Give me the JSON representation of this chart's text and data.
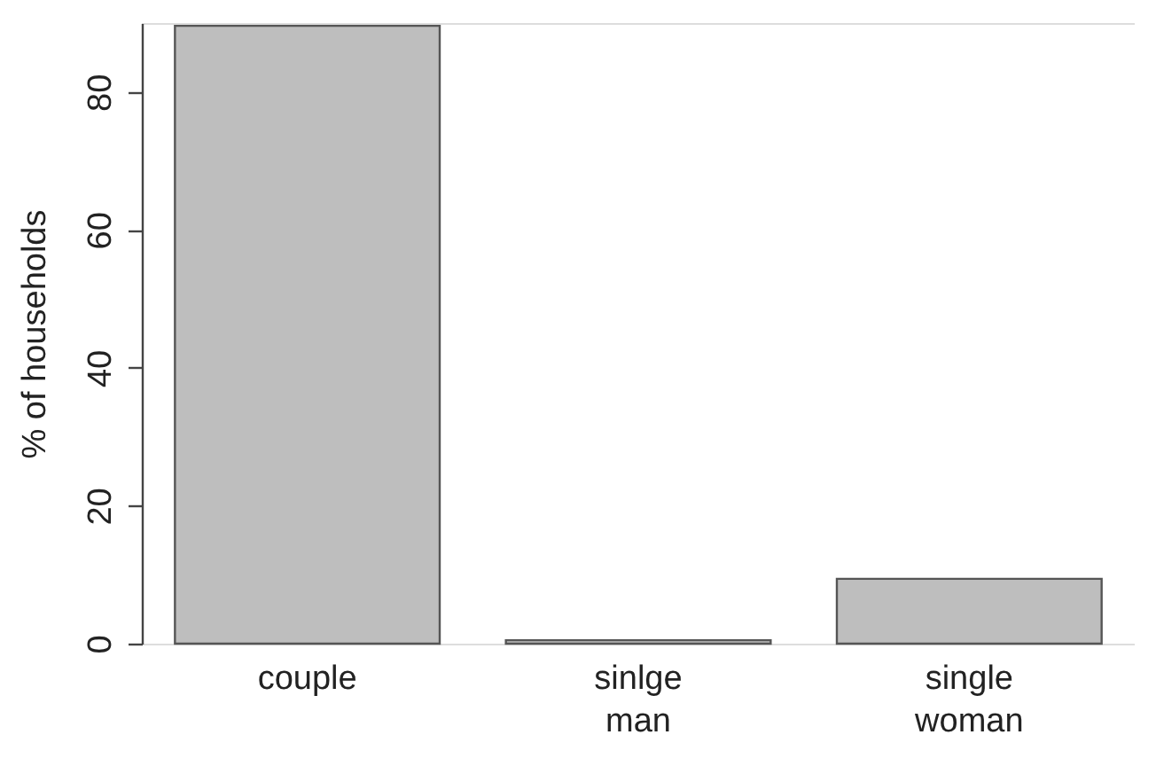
{
  "chart_data": {
    "type": "bar",
    "ylabel": "% of households",
    "categories": [
      "couple",
      "sinlge\nman",
      "single\nwoman"
    ],
    "values": [
      89.6,
      0.5,
      9.4
    ],
    "color": "#bebebe",
    "ylim": [
      0,
      90
    ],
    "yticks": [
      0,
      20,
      40,
      60,
      80
    ],
    "grid": false
  }
}
